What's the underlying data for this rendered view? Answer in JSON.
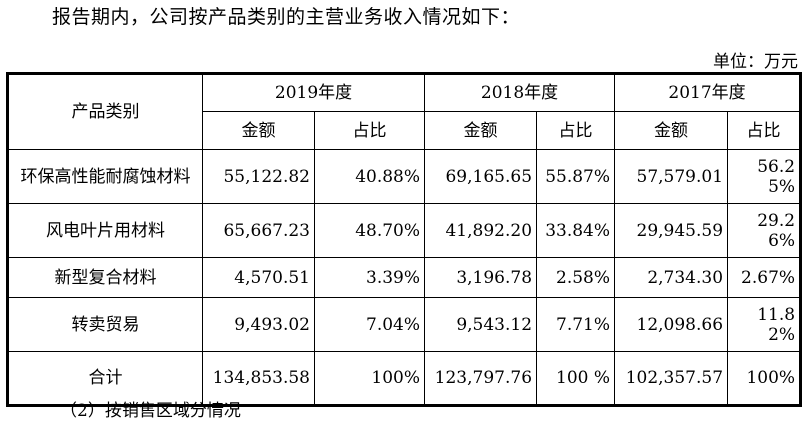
{
  "intro": "报告期内，公司按产品类别的主营业务收入情况如下：",
  "unit": "单位：万元",
  "table": {
    "category_header": "产品类别",
    "years": [
      "2019年度",
      "2018年度",
      "2017年度"
    ],
    "sub_headers": {
      "amount": "金额",
      "ratio": "占比"
    },
    "rows": [
      {
        "name": "环保高性能耐腐蚀材料",
        "y2019_amount": "55,122.82",
        "y2019_ratio": "40.88%",
        "y2018_amount": "69,165.65",
        "y2018_ratio": "55.87%",
        "y2017_amount": "57,579.01",
        "y2017_ratio": "56.25%"
      },
      {
        "name": "风电叶片用材料",
        "y2019_amount": "65,667.23",
        "y2019_ratio": "48.70%",
        "y2018_amount": "41,892.20",
        "y2018_ratio": "33.84%",
        "y2017_amount": "29,945.59",
        "y2017_ratio": "29.26%"
      },
      {
        "name": "新型复合材料",
        "y2019_amount": "4,570.51",
        "y2019_ratio": "3.39%",
        "y2018_amount": "3,196.78",
        "y2018_ratio": "2.58%",
        "y2017_amount": "2,734.30",
        "y2017_ratio": "2.67%"
      },
      {
        "name": "转卖贸易",
        "y2019_amount": "9,493.02",
        "y2019_ratio": "7.04%",
        "y2018_amount": "9,543.12",
        "y2018_ratio": "7.71%",
        "y2017_amount": "12,098.66",
        "y2017_ratio": "11.82%"
      },
      {
        "name": "合计",
        "y2019_amount": "134,853.58",
        "y2019_ratio": "100%",
        "y2018_amount": "123,797.76",
        "y2018_ratio": "100 %",
        "y2017_amount": "102,357.57",
        "y2017_ratio": "100%"
      }
    ]
  },
  "footer_partial": "（2）按销售区域分情况"
}
